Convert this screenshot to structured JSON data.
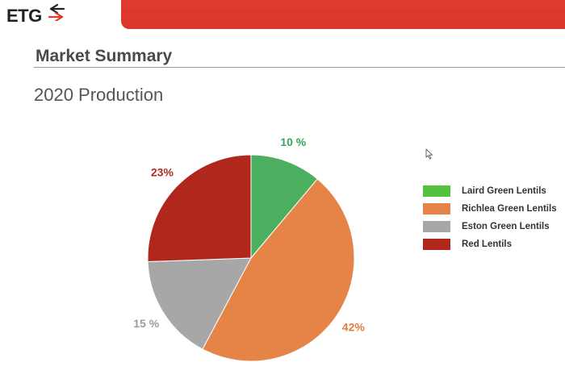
{
  "header": {
    "logo_text": "ETG",
    "logo_icon": "exchange-arrows-icon",
    "accent_color": "#e23a2e"
  },
  "section": {
    "title": "Market Summary"
  },
  "chart_data": {
    "type": "pie",
    "title": "2020 Production",
    "start_angle_deg": 0,
    "direction": "clockwise",
    "slices": [
      {
        "name": "Laird Green Lentils",
        "value": 10,
        "label": "10 %",
        "color": "#4cae5f",
        "legend_color": "#55c23e",
        "label_color": "#36a85a"
      },
      {
        "name": "Richlea Green Lentils",
        "value": 42,
        "label": "42%",
        "color": "#e58446",
        "legend_color": "#e58446",
        "label_color": "#e47b3c"
      },
      {
        "name": "Eston Green Lentils",
        "value": 15,
        "label": "15 %",
        "color": "#a7a7a7",
        "legend_color": "#a7a7a7",
        "label_color": "#9d9d9d"
      },
      {
        "name": "Red Lentils",
        "value": 23,
        "label": "23%",
        "color": "#b0281c",
        "legend_color": "#b0281c",
        "label_color": "#b22a1d"
      }
    ],
    "legend_position": "right"
  }
}
